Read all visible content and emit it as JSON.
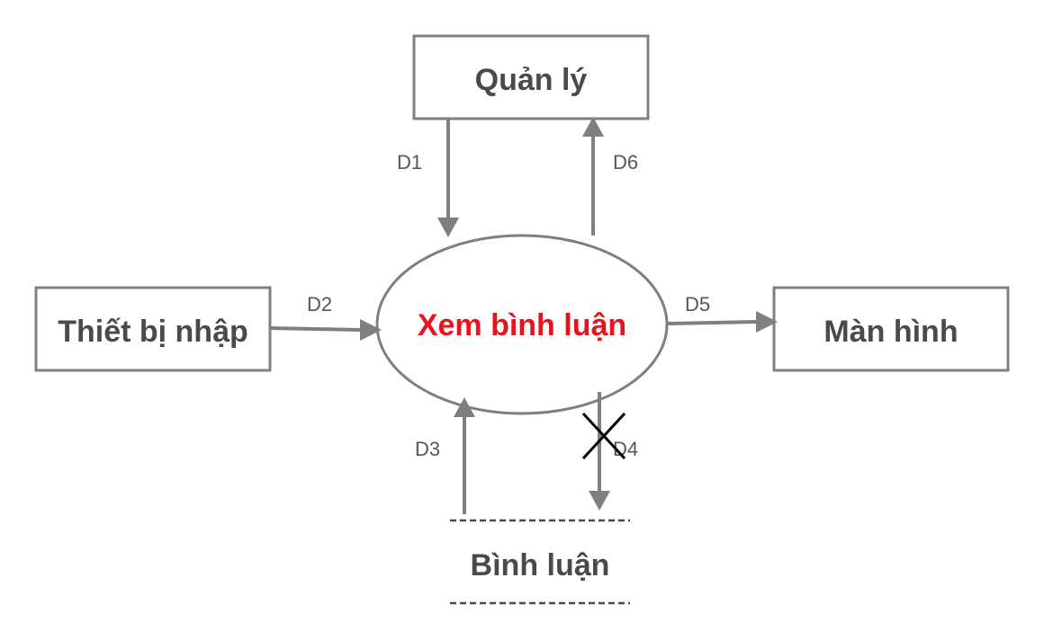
{
  "entities": {
    "manager": "Quản lý",
    "input_device": "Thiết bị nhập",
    "screen": "Màn hình"
  },
  "process": {
    "label": "Xem bình luận"
  },
  "datastore": {
    "label": "Bình luận"
  },
  "flows": {
    "d1": "D1",
    "d2": "D2",
    "d3": "D3",
    "d4": "D4",
    "d5": "D5",
    "d6": "D6"
  },
  "colors": {
    "process_text": "#e8141c",
    "lines": "#7f7f7f",
    "box_text": "#4a4a4a"
  }
}
